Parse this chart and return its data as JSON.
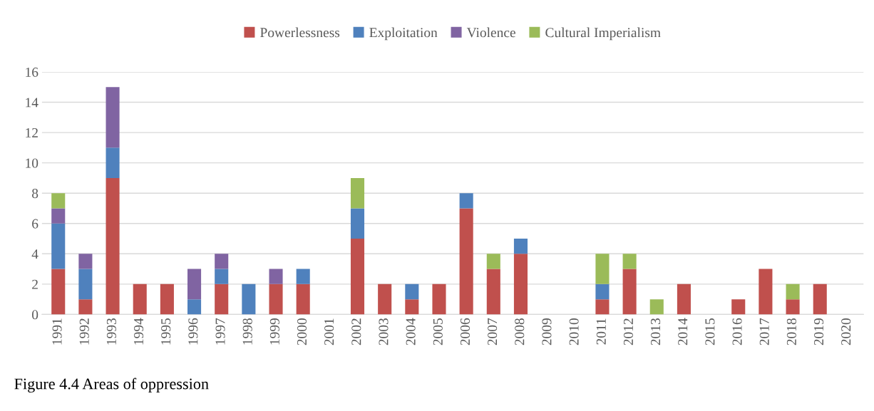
{
  "chart_data": {
    "type": "bar",
    "stacked": true,
    "categories": [
      "1991",
      "1992",
      "1993",
      "1994",
      "1995",
      "1996",
      "1997",
      "1998",
      "1999",
      "2000",
      "2001",
      "2002",
      "2003",
      "2004",
      "2005",
      "2006",
      "2007",
      "2008",
      "2009",
      "2010",
      "2011",
      "2012",
      "2013",
      "2014",
      "2015",
      "2016",
      "2017",
      "2018",
      "2019",
      "2020"
    ],
    "series": [
      {
        "name": "Powerlessness",
        "color": "#c0504d",
        "values": [
          3,
          1,
          9,
          2,
          2,
          0,
          2,
          0,
          2,
          2,
          0,
          5,
          2,
          1,
          2,
          7,
          3,
          4,
          0,
          0,
          1,
          3,
          0,
          2,
          0,
          1,
          3,
          1,
          2,
          0
        ]
      },
      {
        "name": "Exploitation",
        "color": "#4f81bd",
        "values": [
          3,
          2,
          2,
          0,
          0,
          1,
          1,
          2,
          0,
          1,
          0,
          2,
          0,
          1,
          0,
          1,
          0,
          1,
          0,
          0,
          1,
          0,
          0,
          0,
          0,
          0,
          0,
          0,
          0,
          0
        ]
      },
      {
        "name": "Violence",
        "color": "#8064a2",
        "values": [
          1,
          1,
          4,
          0,
          0,
          2,
          1,
          0,
          1,
          0,
          0,
          0,
          0,
          0,
          0,
          0,
          0,
          0,
          0,
          0,
          0,
          0,
          0,
          0,
          0,
          0,
          0,
          0,
          0,
          0
        ]
      },
      {
        "name": "Cultural Imperialism",
        "color": "#9bbb59",
        "values": [
          1,
          0,
          0,
          0,
          0,
          0,
          0,
          0,
          0,
          0,
          0,
          2,
          0,
          0,
          0,
          0,
          1,
          0,
          0,
          0,
          2,
          1,
          1,
          0,
          0,
          0,
          0,
          1,
          0,
          0
        ]
      }
    ],
    "ylim": [
      0,
      16
    ],
    "yticks": [
      0,
      2,
      4,
      6,
      8,
      10,
      12,
      14,
      16
    ],
    "grid": "y",
    "legend": "top",
    "annotations": [
      "Figure 4.4 Areas of oppression"
    ]
  }
}
